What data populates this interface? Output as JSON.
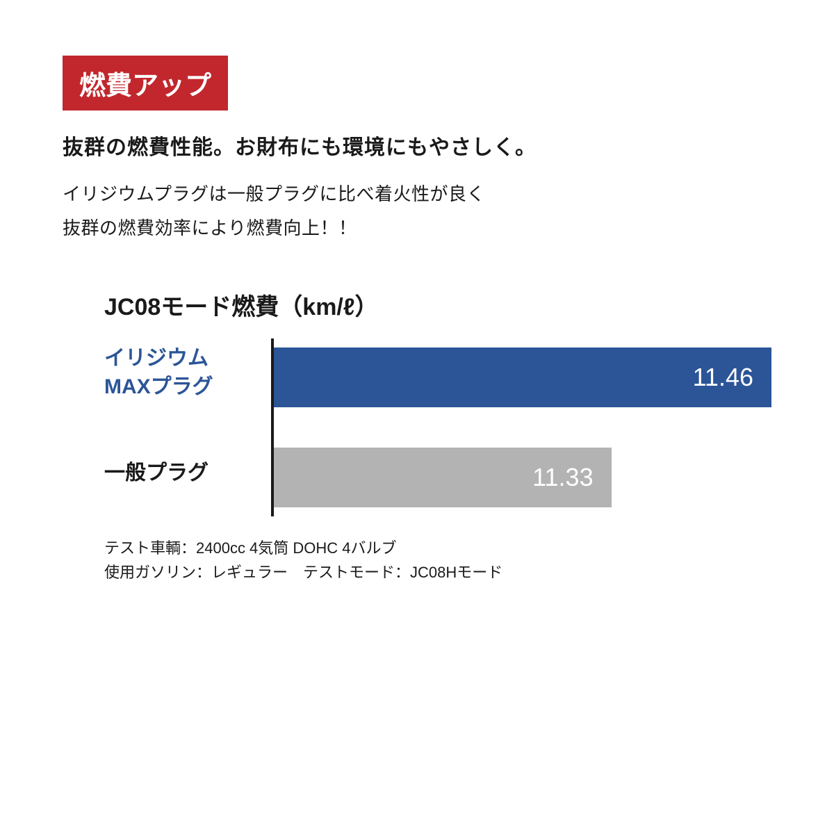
{
  "badge": {
    "text": "燃費アップ",
    "bg_color": "#c1272d",
    "text_color": "#ffffff",
    "font_size": 38
  },
  "subtitle": {
    "text": "抜群の燃費性能。お財布にも環境にもやさしく。",
    "color": "#1a1a1a",
    "font_size": 30
  },
  "description": {
    "line1": "イリジウムプラグは一般プラグに比べ着火性が良く",
    "line2": "抜群の燃費効率により燃費向上！！",
    "color": "#1a1a1a",
    "font_size": 26
  },
  "chart": {
    "type": "bar",
    "title": "JC08モード燃費（km/ℓ）",
    "title_color": "#1a1a1a",
    "title_font_size": 34,
    "axis_color": "#1a1a1a",
    "max_value": 11.46,
    "bars": [
      {
        "label_line1": "イリジウム",
        "label_line2": "MAXプラグ",
        "label_color": "#2b5597",
        "label_font_size": 30,
        "value": 11.46,
        "value_text": "11.46",
        "bar_color": "#2b5597",
        "bar_width_pct": 100
      },
      {
        "label_line1": "一般プラグ",
        "label_line2": "",
        "label_color": "#1a1a1a",
        "label_font_size": 30,
        "value": 11.33,
        "value_text": "11.33",
        "bar_color": "#b3b3b3",
        "bar_width_pct": 68
      }
    ]
  },
  "footnote": {
    "line1": "テスト車輌：2400cc 4気筒 DOHC 4バルブ",
    "line2": "使用ガソリン：レギュラー　テストモード：JC08Hモード",
    "color": "#1a1a1a",
    "font_size": 22
  }
}
